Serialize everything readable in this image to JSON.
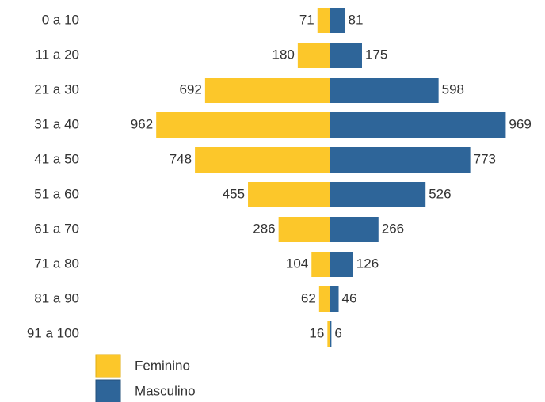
{
  "chart_data": {
    "type": "pyramid",
    "categories": [
      "0 a 10",
      "11 a 20",
      "21 a 30",
      "31 a 40",
      "41 a 50",
      "51 a 60",
      "61 a 70",
      "71 a 80",
      "81 a 90",
      "91 a 100"
    ],
    "series": [
      {
        "name": "Feminino",
        "color": "#fcc72a",
        "values": [
          71,
          180,
          692,
          962,
          748,
          455,
          286,
          104,
          62,
          16
        ]
      },
      {
        "name": "Masculino",
        "color": "#2e6599",
        "values": [
          81,
          175,
          598,
          969,
          773,
          526,
          266,
          126,
          46,
          6
        ]
      }
    ]
  }
}
